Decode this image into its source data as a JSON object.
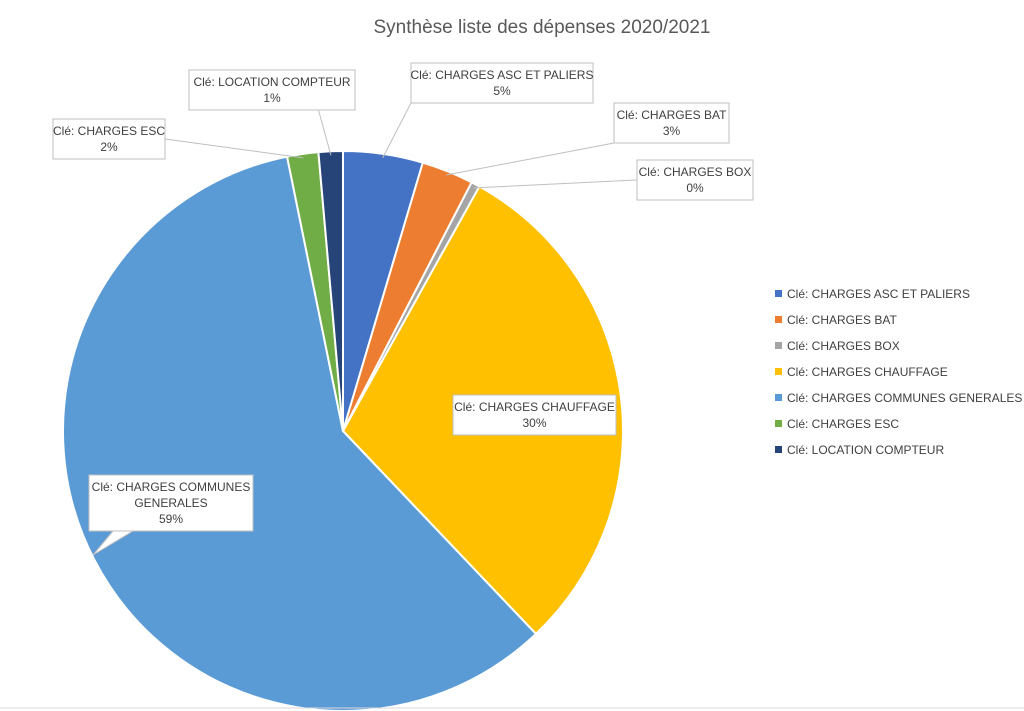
{
  "chart_data": {
    "type": "pie",
    "title": "Synthèse liste des dépenses 2020/2021",
    "series": [
      {
        "values": [
          5,
          3,
          0,
          30,
          59,
          2,
          1
        ],
        "slice_values": [
          4.6,
          3.0,
          0.5,
          29.8,
          58.9,
          1.8,
          1.4
        ]
      }
    ],
    "categories": [
      "Clé: CHARGES ASC ET PALIERS",
      "Clé: CHARGES BAT",
      "Clé: CHARGES BOX",
      "Clé: CHARGES CHAUFFAGE",
      "Clé: CHARGES COMMUNES GENERALES",
      "Clé: CHARGES ESC",
      "Clé: LOCATION COMPTEUR"
    ],
    "data_labels": [
      {
        "lines": [
          "Clé: CHARGES ASC ET PALIERS",
          "5%"
        ]
      },
      {
        "lines": [
          "Clé: CHARGES BAT",
          "3%"
        ]
      },
      {
        "lines": [
          "Clé: CHARGES BOX",
          "0%"
        ]
      },
      {
        "lines": [
          "Clé: CHARGES CHAUFFAGE",
          "30%"
        ]
      },
      {
        "lines": [
          "Clé: CHARGES COMMUNES",
          "GENERALES",
          "59%"
        ]
      },
      {
        "lines": [
          "Clé: CHARGES ESC",
          "2%"
        ]
      },
      {
        "lines": [
          "Clé: LOCATION COMPTEUR",
          "1%"
        ]
      }
    ],
    "colors": [
      "#4472C4",
      "#ED7D31",
      "#A5A5A5",
      "#FFC000",
      "#5B9BD5",
      "#70AD47",
      "#264478"
    ],
    "legend_position": "right",
    "start_angle": "12 o'clock",
    "direction": "clockwise"
  }
}
